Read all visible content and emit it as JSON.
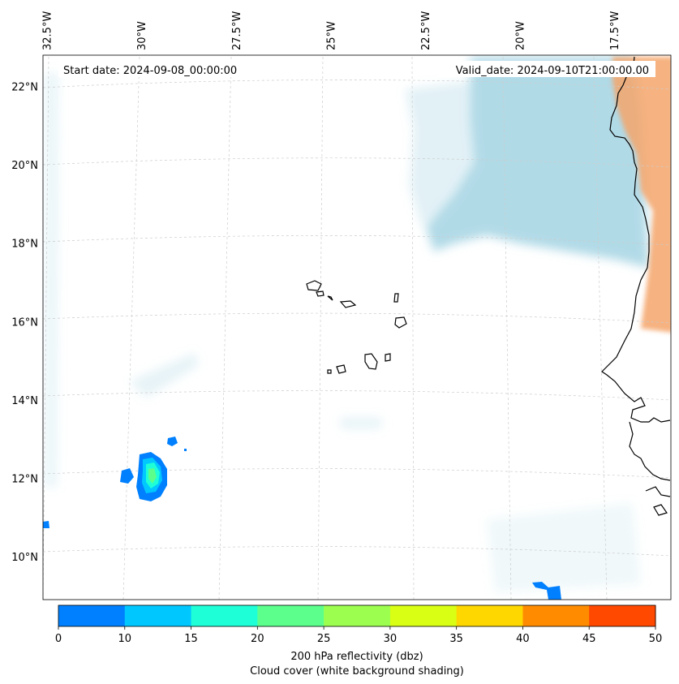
{
  "map": {
    "start_date_label": "Start date: 2024-09-08_00:00:00",
    "valid_date_label": "Valid_date: 2024-09-10T21:00:00.00",
    "lon_ticks": [
      {
        "value": -32.5,
        "label": "32.5°W"
      },
      {
        "value": -30,
        "label": "30°W"
      },
      {
        "value": -27.5,
        "label": "27.5°W"
      },
      {
        "value": -25,
        "label": "25°W"
      },
      {
        "value": -22.5,
        "label": "22.5°W"
      },
      {
        "value": -20,
        "label": "20°W"
      },
      {
        "value": -17.5,
        "label": "17.5°W"
      }
    ],
    "lat_ticks": [
      {
        "value": 22,
        "label": "22°N"
      },
      {
        "value": 20,
        "label": "20°N"
      },
      {
        "value": 18,
        "label": "18°N"
      },
      {
        "value": 16,
        "label": "16°N"
      },
      {
        "value": 14,
        "label": "14°N"
      },
      {
        "value": 12,
        "label": "12°N"
      },
      {
        "value": 10,
        "label": "10°N"
      }
    ],
    "lon_range": [
      -32.6,
      -16.0
    ],
    "lat_range": [
      8.9,
      22.8
    ],
    "gridlines": true
  },
  "colorbar": {
    "boundaries": [
      0,
      10,
      15,
      20,
      25,
      30,
      35,
      40,
      45,
      50
    ],
    "tick_labels": [
      "0",
      "10",
      "15",
      "20",
      "25",
      "30",
      "35",
      "40",
      "45",
      "50"
    ],
    "colors": [
      "#0080ff",
      "#00c8ff",
      "#1effd8",
      "#5cff8c",
      "#9cff50",
      "#d8ff14",
      "#ffd700",
      "#ff8c00",
      "#ff4800"
    ],
    "label_line1": "200 hPa reflectivity (dbz)",
    "label_line2": "Cloud cover (white background shading)"
  },
  "colors": {
    "cloud_light_blue": "#add8e6",
    "dust_orange": "#f4a46a",
    "coastline": "#000000",
    "gridline": "#cccccc"
  }
}
